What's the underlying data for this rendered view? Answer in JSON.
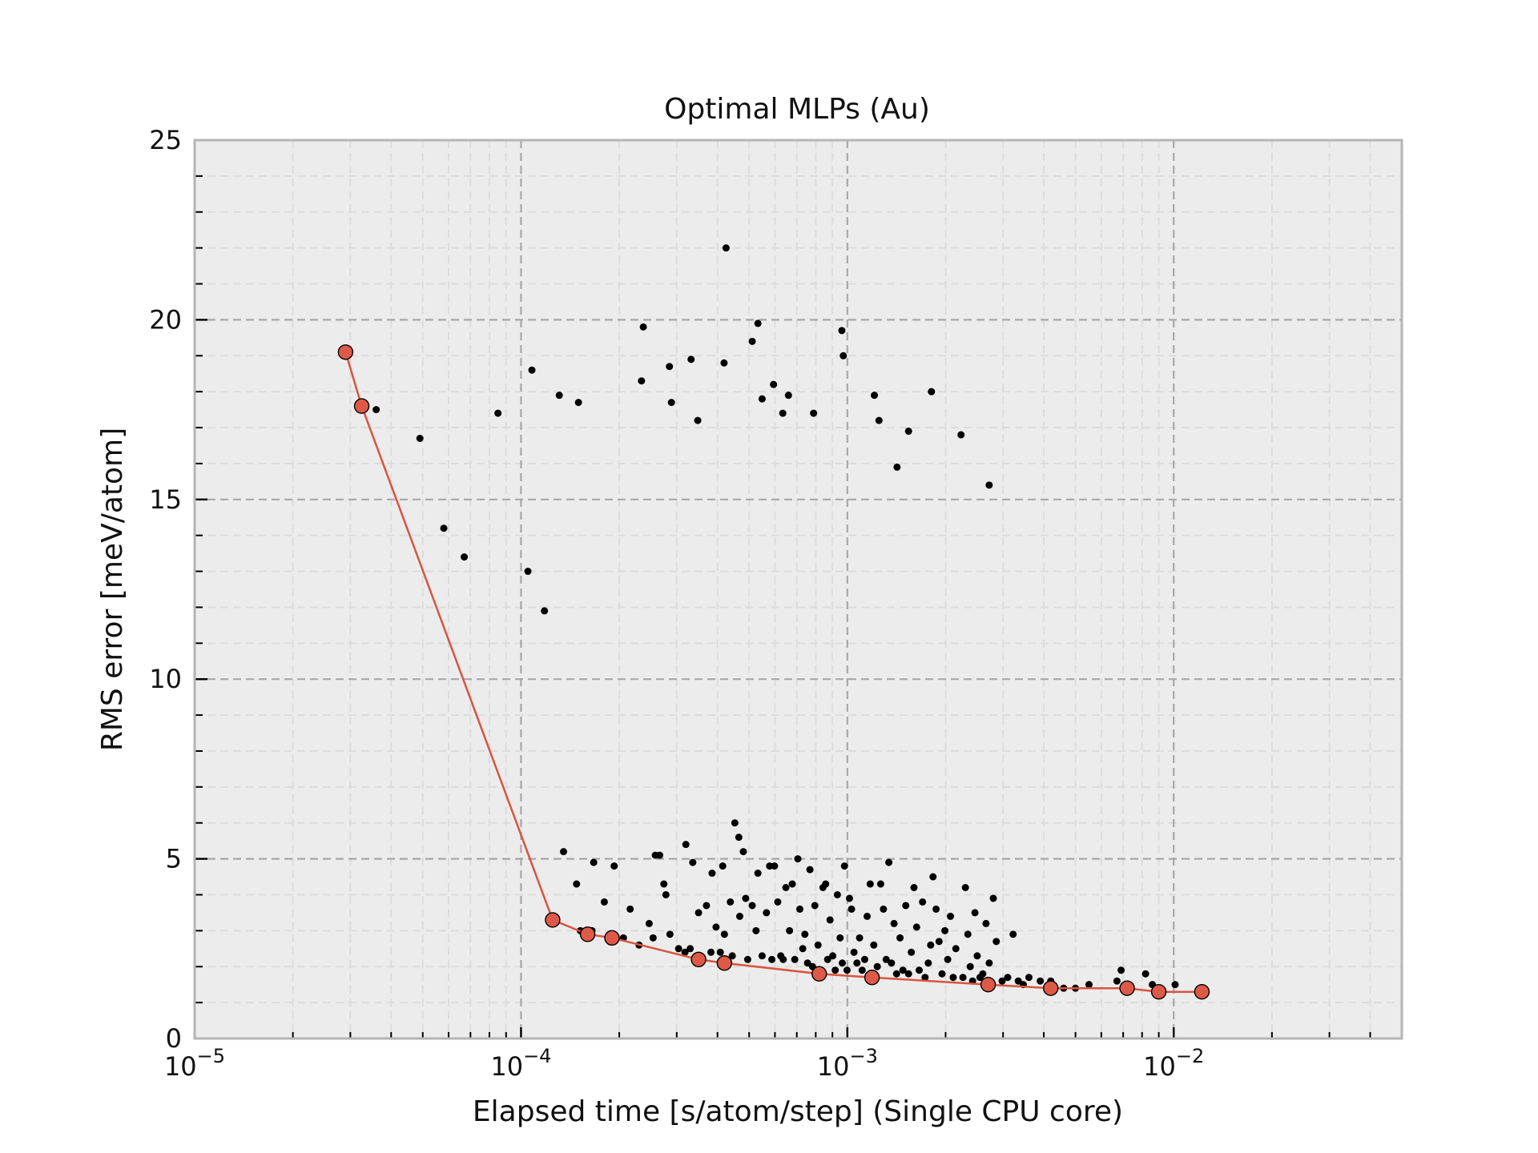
{
  "chart_data": {
    "type": "scatter",
    "title": "Optimal MLPs (Au)",
    "xlabel": "Elapsed time [s/atom/step] (Single CPU core)",
    "ylabel": "RMS error [meV/atom]",
    "xscale": "log",
    "xlim": [
      1e-05,
      0.05
    ],
    "ylim": [
      0,
      25
    ],
    "x_ticks": [
      {
        "value": 1e-05,
        "base": "10",
        "exp": "−5"
      },
      {
        "value": 0.0001,
        "base": "10",
        "exp": "−4"
      },
      {
        "value": 0.001,
        "base": "10",
        "exp": "−3"
      },
      {
        "value": 0.01,
        "base": "10",
        "exp": "−2"
      }
    ],
    "y_ticks": [
      {
        "value": 0,
        "label": "0"
      },
      {
        "value": 5,
        "label": "5"
      },
      {
        "value": 10,
        "label": "10"
      },
      {
        "value": 15,
        "label": "15"
      },
      {
        "value": 20,
        "label": "20"
      },
      {
        "value": 25,
        "label": "25"
      }
    ],
    "grid": true,
    "colors": {
      "background": "#ececec",
      "frame": "#b5b5b5",
      "major_grid": "#a8a8a8",
      "minor_grid": "#dcdcdc",
      "points": "#000000",
      "pareto_line": "#d9543f",
      "pareto_marker": "#de5a48"
    },
    "series": [
      {
        "kind": "scatter",
        "points": [
          [
            3.6e-05,
            17.5
          ],
          [
            4.9e-05,
            16.7
          ],
          [
            5.8e-05,
            14.2
          ],
          [
            6.7e-05,
            13.4
          ],
          [
            8.5e-05,
            17.4
          ],
          [
            0.000105,
            13.0
          ],
          [
            0.000108,
            18.6
          ],
          [
            0.000118,
            11.9
          ],
          [
            0.000131,
            17.9
          ],
          [
            0.00015,
            17.7
          ],
          [
            0.000237,
            19.8
          ],
          [
            0.000234,
            18.3
          ],
          [
            0.000285,
            18.7
          ],
          [
            0.000289,
            17.7
          ],
          [
            0.000332,
            18.9
          ],
          [
            0.000348,
            17.2
          ],
          [
            0.000419,
            18.8
          ],
          [
            0.000425,
            22.0
          ],
          [
            0.000511,
            19.4
          ],
          [
            0.000532,
            19.9
          ],
          [
            0.000548,
            17.8
          ],
          [
            0.000594,
            18.2
          ],
          [
            0.000634,
            17.4
          ],
          [
            0.00066,
            17.9
          ],
          [
            0.000788,
            17.4
          ],
          [
            0.000962,
            19.7
          ],
          [
            0.000972,
            19.0
          ],
          [
            0.00121,
            17.9
          ],
          [
            0.00125,
            17.2
          ],
          [
            0.00142,
            15.9
          ],
          [
            0.00154,
            16.9
          ],
          [
            0.00181,
            18.0
          ],
          [
            0.00223,
            16.8
          ],
          [
            0.00272,
            15.4
          ],
          [
            0.000135,
            5.2
          ],
          [
            0.000148,
            4.3
          ],
          [
            0.000152,
            3.0
          ],
          [
            0.000165,
            3.0
          ],
          [
            0.000167,
            4.9
          ],
          [
            0.00018,
            3.8
          ],
          [
            0.000193,
            4.8
          ],
          [
            0.000206,
            2.8
          ],
          [
            0.000216,
            3.6
          ],
          [
            0.00023,
            2.6
          ],
          [
            0.000247,
            3.2
          ],
          [
            0.000254,
            2.8
          ],
          [
            0.000258,
            5.1
          ],
          [
            0.000266,
            5.1
          ],
          [
            0.000274,
            4.3
          ],
          [
            0.000278,
            4.0
          ],
          [
            0.000286,
            2.9
          ],
          [
            0.000304,
            2.5
          ],
          [
            0.000318,
            2.4
          ],
          [
            0.00032,
            5.4
          ],
          [
            0.00033,
            2.5
          ],
          [
            0.000336,
            4.9
          ],
          [
            0.00035,
            3.5
          ],
          [
            0.000355,
            2.3
          ],
          [
            0.00037,
            3.7
          ],
          [
            0.000382,
            2.4
          ],
          [
            0.000385,
            4.6
          ],
          [
            0.000396,
            3.1
          ],
          [
            0.000408,
            2.4
          ],
          [
            0.000415,
            4.8
          ],
          [
            0.00042,
            2.9
          ],
          [
            0.000438,
            3.8
          ],
          [
            0.000444,
            2.3
          ],
          [
            0.000452,
            6.0
          ],
          [
            0.000465,
            5.6
          ],
          [
            0.000468,
            3.4
          ],
          [
            0.00048,
            5.2
          ],
          [
            0.000488,
            3.9
          ],
          [
            0.000495,
            2.2
          ],
          [
            0.000511,
            3.7
          ],
          [
            0.000525,
            3.0
          ],
          [
            0.000532,
            4.6
          ],
          [
            0.000548,
            2.3
          ],
          [
            0.000565,
            3.5
          ],
          [
            0.000578,
            4.8
          ],
          [
            0.000587,
            2.2
          ],
          [
            0.000598,
            4.8
          ],
          [
            0.000612,
            3.8
          ],
          [
            0.000625,
            2.3
          ],
          [
            0.000636,
            2.2
          ],
          [
            0.000648,
            4.2
          ],
          [
            0.000665,
            3.0
          ],
          [
            0.000678,
            4.3
          ],
          [
            0.00069,
            2.2
          ],
          [
            0.000705,
            5.0
          ],
          [
            0.000715,
            3.6
          ],
          [
            0.00073,
            2.5
          ],
          [
            0.000741,
            2.9
          ],
          [
            0.000755,
            2.1
          ],
          [
            0.000768,
            4.7
          ],
          [
            0.000782,
            2.0
          ],
          [
            0.000795,
            3.7
          ],
          [
            0.000813,
            2.6
          ],
          [
            0.000828,
            1.9
          ],
          [
            0.000842,
            4.2
          ],
          [
            0.000858,
            4.3
          ],
          [
            0.00087,
            2.2
          ],
          [
            0.000885,
            3.3
          ],
          [
            0.000902,
            2.3
          ],
          [
            0.000918,
            1.9
          ],
          [
            0.000932,
            4.0
          ],
          [
            0.00095,
            2.8
          ],
          [
            0.000965,
            2.1
          ],
          [
            0.00098,
            4.8
          ],
          [
            0.000998,
            1.9
          ],
          [
            0.001015,
            3.9
          ],
          [
            0.00103,
            3.6
          ],
          [
            0.001048,
            2.4
          ],
          [
            0.00107,
            2.1
          ],
          [
            0.00109,
            2.8
          ],
          [
            0.00111,
            1.9
          ],
          [
            0.00113,
            2.2
          ],
          [
            0.00115,
            3.4
          ],
          [
            0.001175,
            4.3
          ],
          [
            0.001205,
            2.6
          ],
          [
            0.001235,
            2.0
          ],
          [
            0.001265,
            4.3
          ],
          [
            0.00129,
            3.6
          ],
          [
            0.001315,
            2.2
          ],
          [
            0.00134,
            4.9
          ],
          [
            0.001365,
            2.1
          ],
          [
            0.00139,
            3.2
          ],
          [
            0.001415,
            1.8
          ],
          [
            0.00145,
            2.8
          ],
          [
            0.00148,
            1.9
          ],
          [
            0.00151,
            3.7
          ],
          [
            0.00154,
            1.8
          ],
          [
            0.00157,
            2.4
          ],
          [
            0.0016,
            4.2
          ],
          [
            0.00163,
            3.1
          ],
          [
            0.00166,
            1.9
          ],
          [
            0.0017,
            3.8
          ],
          [
            0.00173,
            1.7
          ],
          [
            0.00177,
            2.1
          ],
          [
            0.0018,
            2.6
          ],
          [
            0.00183,
            4.5
          ],
          [
            0.00187,
            3.6
          ],
          [
            0.00191,
            2.7
          ],
          [
            0.00195,
            1.8
          ],
          [
            0.00199,
            3.0
          ],
          [
            0.00203,
            2.2
          ],
          [
            0.00207,
            3.4
          ],
          [
            0.00211,
            1.7
          ],
          [
            0.00215,
            2.5
          ],
          [
            0.00226,
            1.7
          ],
          [
            0.0023,
            4.2
          ],
          [
            0.00234,
            2.9
          ],
          [
            0.00238,
            2.0
          ],
          [
            0.00242,
            1.6
          ],
          [
            0.00246,
            3.5
          ],
          [
            0.0025,
            2.3
          ],
          [
            0.00255,
            1.7
          ],
          [
            0.0026,
            1.8
          ],
          [
            0.00266,
            3.2
          ],
          [
            0.00272,
            2.1
          ],
          [
            0.0028,
            3.9
          ],
          [
            0.00286,
            2.7
          ],
          [
            0.00298,
            1.6
          ],
          [
            0.0031,
            1.7
          ],
          [
            0.00322,
            2.9
          ],
          [
            0.00334,
            1.6
          ],
          [
            0.00346,
            1.5
          ],
          [
            0.0036,
            1.7
          ],
          [
            0.0039,
            1.6
          ],
          [
            0.0042,
            1.6
          ],
          [
            0.0046,
            1.4
          ],
          [
            0.005,
            1.4
          ],
          [
            0.0055,
            1.5
          ],
          [
            0.0067,
            1.6
          ],
          [
            0.0069,
            1.9
          ],
          [
            0.0082,
            1.8
          ],
          [
            0.0086,
            1.5
          ],
          [
            0.0101,
            1.5
          ]
        ]
      },
      {
        "kind": "pareto-line",
        "points": [
          [
            2.9e-05,
            19.1
          ],
          [
            3.25e-05,
            17.6
          ],
          [
            0.000125,
            3.3
          ],
          [
            0.00016,
            2.9
          ],
          [
            0.00019,
            2.8
          ],
          [
            0.00035,
            2.2
          ],
          [
            0.00042,
            2.1
          ],
          [
            0.00082,
            1.8
          ],
          [
            0.00119,
            1.7
          ],
          [
            0.0027,
            1.5
          ],
          [
            0.0042,
            1.4
          ],
          [
            0.0072,
            1.4
          ],
          [
            0.009,
            1.3
          ],
          [
            0.0122,
            1.3
          ]
        ]
      }
    ]
  }
}
